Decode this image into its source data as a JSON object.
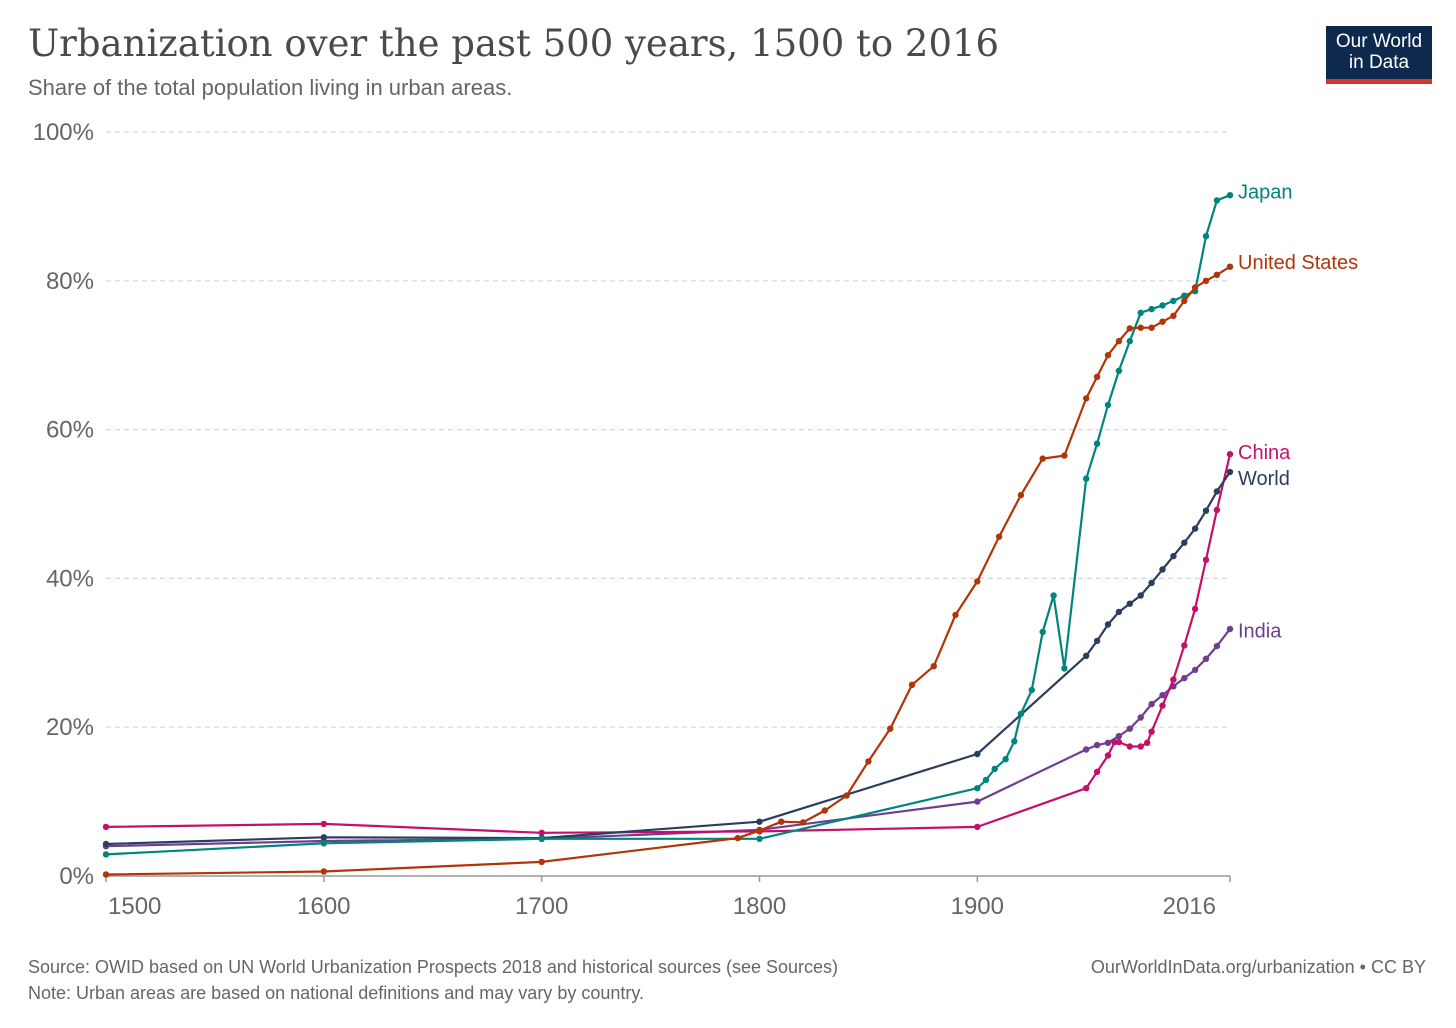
{
  "header": {
    "title": "Urbanization over the past 500 years, 1500 to 2016",
    "subtitle": "Share of the total population living in urban areas."
  },
  "logo": {
    "line1": "Our World",
    "line2": "in Data"
  },
  "footer": {
    "source": "Source: OWID based on UN World Urbanization Prospects 2018 and historical sources (see Sources)",
    "note": "Note: Urban areas are based on national definitions and may vary by country.",
    "link": "OurWorldInData.org/urbanization • CC BY"
  },
  "chart_data": {
    "type": "line",
    "title": "Urbanization over the past 500 years, 1500 to 2016",
    "subtitle": "Share of the total population living in urban areas.",
    "xlim": [
      1500,
      2016
    ],
    "ylim": [
      0,
      100
    ],
    "x_ticks": [
      1500,
      1600,
      1700,
      1800,
      1900,
      2016
    ],
    "y_ticks": [
      0,
      20,
      40,
      60,
      80,
      100
    ],
    "y_tick_labels": [
      "0%",
      "20%",
      "40%",
      "60%",
      "80%",
      "100%"
    ],
    "grid": "horizontal dashed",
    "legend": "inline labels at line ends (right)",
    "series": [
      {
        "name": "India",
        "color": "#6d3e91",
        "points": [
          [
            1500,
            4.0
          ],
          [
            1600,
            4.7
          ],
          [
            1700,
            5.0
          ],
          [
            1800,
            6.2
          ],
          [
            1900,
            10.0
          ],
          [
            1950,
            17.0
          ],
          [
            1955,
            17.6
          ],
          [
            1960,
            17.9
          ],
          [
            1965,
            18.8
          ],
          [
            1970,
            19.8
          ],
          [
            1975,
            21.3
          ],
          [
            1980,
            23.1
          ],
          [
            1985,
            24.3
          ],
          [
            1990,
            25.5
          ],
          [
            1995,
            26.6
          ],
          [
            2000,
            27.7
          ],
          [
            2005,
            29.2
          ],
          [
            2010,
            30.9
          ],
          [
            2016,
            33.2
          ]
        ]
      },
      {
        "name": "China",
        "color": "#c5106b",
        "points": [
          [
            1500,
            6.6
          ],
          [
            1600,
            7.0
          ],
          [
            1700,
            5.8
          ],
          [
            1800,
            6.0
          ],
          [
            1900,
            6.6
          ],
          [
            1950,
            11.8
          ],
          [
            1955,
            14.0
          ],
          [
            1960,
            16.2
          ],
          [
            1963,
            18.0
          ],
          [
            1965,
            18.0
          ],
          [
            1970,
            17.4
          ],
          [
            1975,
            17.4
          ],
          [
            1978,
            17.9
          ],
          [
            1980,
            19.4
          ],
          [
            1985,
            22.9
          ],
          [
            1990,
            26.4
          ],
          [
            1995,
            31.0
          ],
          [
            2000,
            35.9
          ],
          [
            2005,
            42.5
          ],
          [
            2010,
            49.2
          ],
          [
            2016,
            56.7
          ]
        ]
      },
      {
        "name": "World",
        "color": "#2c3e5e",
        "points": [
          [
            1500,
            4.3
          ],
          [
            1600,
            5.2
          ],
          [
            1700,
            5.1
          ],
          [
            1800,
            7.3
          ],
          [
            1900,
            16.4
          ],
          [
            1950,
            29.6
          ],
          [
            1955,
            31.6
          ],
          [
            1960,
            33.8
          ],
          [
            1965,
            35.5
          ],
          [
            1970,
            36.6
          ],
          [
            1975,
            37.7
          ],
          [
            1980,
            39.4
          ],
          [
            1985,
            41.2
          ],
          [
            1990,
            43.0
          ],
          [
            1995,
            44.8
          ],
          [
            2000,
            46.7
          ],
          [
            2005,
            49.1
          ],
          [
            2010,
            51.7
          ],
          [
            2016,
            54.3
          ]
        ]
      },
      {
        "name": "Japan",
        "color": "#00847e",
        "points": [
          [
            1500,
            2.9
          ],
          [
            1600,
            4.4
          ],
          [
            1700,
            5.0
          ],
          [
            1800,
            5.0
          ],
          [
            1900,
            11.8
          ],
          [
            1904,
            12.9
          ],
          [
            1908,
            14.4
          ],
          [
            1913,
            15.7
          ],
          [
            1917,
            18.1
          ],
          [
            1920,
            21.8
          ],
          [
            1925,
            25.0
          ],
          [
            1930,
            32.8
          ],
          [
            1935,
            37.7
          ],
          [
            1940,
            27.9
          ],
          [
            1950,
            53.4
          ],
          [
            1955,
            58.1
          ],
          [
            1960,
            63.3
          ],
          [
            1965,
            67.9
          ],
          [
            1970,
            71.9
          ],
          [
            1975,
            75.7
          ],
          [
            1980,
            76.2
          ],
          [
            1985,
            76.7
          ],
          [
            1990,
            77.3
          ],
          [
            1995,
            78.0
          ],
          [
            2000,
            78.6
          ],
          [
            2005,
            86.0
          ],
          [
            2010,
            90.8
          ],
          [
            2016,
            91.5
          ]
        ]
      },
      {
        "name": "United States",
        "color": "#b13507",
        "points": [
          [
            1500,
            0.2
          ],
          [
            1600,
            0.6
          ],
          [
            1700,
            1.9
          ],
          [
            1790,
            5.1
          ],
          [
            1800,
            6.1
          ],
          [
            1810,
            7.3
          ],
          [
            1820,
            7.2
          ],
          [
            1830,
            8.8
          ],
          [
            1840,
            10.8
          ],
          [
            1850,
            15.4
          ],
          [
            1860,
            19.8
          ],
          [
            1870,
            25.7
          ],
          [
            1880,
            28.2
          ],
          [
            1890,
            35.1
          ],
          [
            1900,
            39.6
          ],
          [
            1910,
            45.6
          ],
          [
            1920,
            51.2
          ],
          [
            1930,
            56.1
          ],
          [
            1940,
            56.5
          ],
          [
            1950,
            64.2
          ],
          [
            1955,
            67.1
          ],
          [
            1960,
            70.0
          ],
          [
            1965,
            71.9
          ],
          [
            1970,
            73.6
          ],
          [
            1975,
            73.7
          ],
          [
            1980,
            73.7
          ],
          [
            1985,
            74.5
          ],
          [
            1990,
            75.3
          ],
          [
            1995,
            77.3
          ],
          [
            2000,
            79.1
          ],
          [
            2005,
            80.0
          ],
          [
            2010,
            80.8
          ],
          [
            2016,
            81.9
          ]
        ]
      }
    ]
  }
}
